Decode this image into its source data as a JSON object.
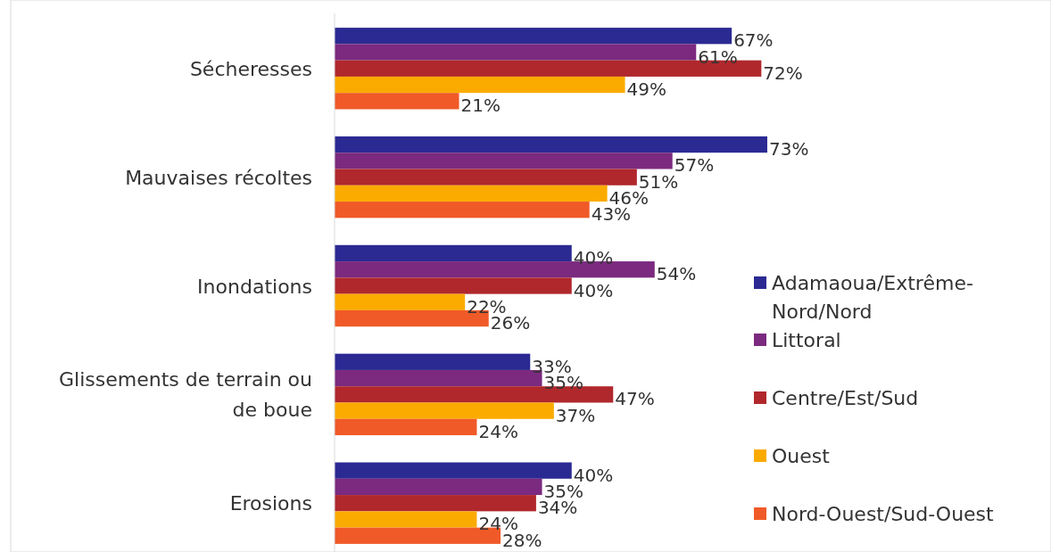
{
  "chart_data": {
    "type": "bar",
    "orientation": "horizontal",
    "categories": [
      "Sécheresses",
      "Mauvaises récoltes",
      "Inondations",
      "Glissements de terrain ou de boue",
      "Erosions"
    ],
    "series": [
      {
        "name": "Adamaoua/Extrême-Nord/Nord",
        "color": "#2b2a93",
        "values": [
          67,
          73,
          40,
          33,
          40
        ],
        "value_labels": [
          "67%",
          "73%",
          "40%",
          "33%",
          "40%"
        ]
      },
      {
        "name": "Littoral",
        "color": "#7b2a7f",
        "values": [
          61,
          57,
          54,
          35,
          35
        ],
        "value_labels": [
          "61%",
          "57%",
          "54%",
          "35%",
          "35%"
        ]
      },
      {
        "name": "Centre/Est/Sud",
        "color": "#b0282c",
        "values": [
          72,
          51,
          40,
          47,
          34
        ],
        "value_labels": [
          "72%",
          "51%",
          "40%",
          "47%",
          "34%"
        ]
      },
      {
        "name": "Ouest",
        "color": "#fbab00",
        "values": [
          49,
          46,
          22,
          37,
          24
        ],
        "value_labels": [
          "49%",
          "46%",
          "22%",
          "37%",
          "24%"
        ]
      },
      {
        "name": "Nord-Ouest/Sud-Ouest",
        "color": "#f05a28",
        "values": [
          21,
          43,
          26,
          24,
          28
        ],
        "value_labels": [
          "21%",
          "43%",
          "26%",
          "24%",
          "28%"
        ]
      }
    ],
    "legend": "right"
  }
}
